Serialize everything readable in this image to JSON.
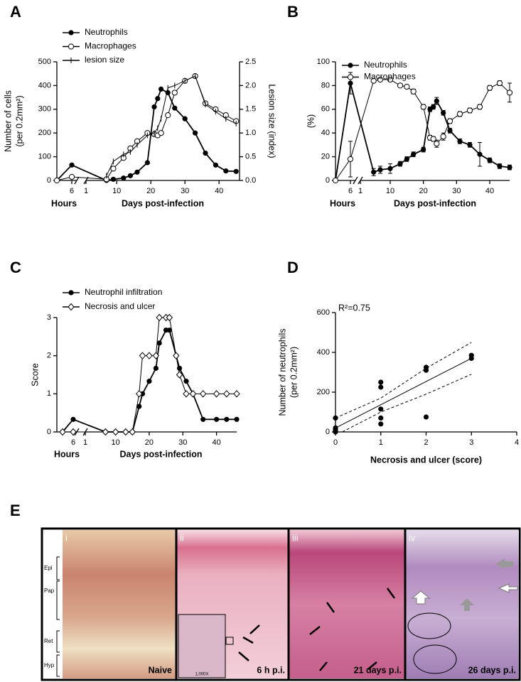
{
  "chart_data": [
    {
      "panel": "A",
      "type": "line",
      "ylabel": [
        "Number of cells",
        "(per 0.2mm²)"
      ],
      "y2label": "Lesion size (index)",
      "hours_label": "Hours",
      "xlabel": "Days post-infection",
      "hours_x": [
        0,
        6
      ],
      "hours_xlim": [
        0,
        8
      ],
      "hours_xticks": [
        6
      ],
      "x": [
        7,
        9,
        12,
        14,
        16,
        19,
        21,
        22,
        23,
        25,
        27,
        30,
        33,
        36,
        39,
        42,
        45
      ],
      "xlim": [
        1,
        46
      ],
      "xticks": [
        1,
        10,
        20,
        30,
        40
      ],
      "ylim": [
        0,
        500
      ],
      "yticks": [
        0,
        100,
        200,
        300,
        400,
        500
      ],
      "y2lim": [
        0,
        2.5
      ],
      "y2ticks": [
        {
          "value": 0,
          "label": "0.0"
        },
        0.5,
        {
          "value": 1,
          "label": "1.0"
        },
        1.5,
        {
          "value": 2,
          "label": "2.0"
        },
        2.5
      ],
      "series": [
        {
          "name": "Neutrophils",
          "marker": "filled-circle",
          "color": "#000000",
          "hours_values": [
            0,
            65
          ],
          "values": [
            0,
            5,
            10,
            20,
            35,
            75,
            310,
            345,
            385,
            370,
            305,
            260,
            200,
            115,
            65,
            40,
            38
          ]
        },
        {
          "name": "Macrophages",
          "marker": "open-circle",
          "color": "#000000",
          "hours_values": [
            0,
            15
          ],
          "values": [
            5,
            50,
            95,
            135,
            165,
            200,
            195,
            190,
            200,
            275,
            370,
            420,
            440,
            325,
            300,
            275,
            250
          ]
        },
        {
          "name": "lesion size",
          "marker": "tick",
          "color": "#000000",
          "axis": "y2",
          "values": [
            0.1,
            0.4,
            0.55,
            0.6,
            0.75,
            0.95,
            1.0,
            1.1,
            1.3,
            1.95,
            2.0,
            2.1,
            2.2,
            1.6,
            1.45,
            1.3,
            1.2
          ]
        }
      ]
    },
    {
      "panel": "B",
      "type": "line",
      "ylabel": [
        "(%)"
      ],
      "hours_label": "Hours",
      "xlabel": "Days post-infection",
      "hours_x": [
        0,
        6
      ],
      "hours_xlim": [
        0,
        8
      ],
      "hours_xticks": [
        6
      ],
      "x": [
        5,
        7,
        10,
        13,
        15,
        17,
        20,
        22,
        23,
        24,
        26,
        28,
        31,
        34,
        37,
        40,
        43,
        46
      ],
      "xlim": [
        1,
        46
      ],
      "xticks": [
        1,
        10,
        20,
        30,
        40
      ],
      "ylim": [
        0,
        100
      ],
      "yticks": [
        0,
        20,
        40,
        60,
        80,
        100
      ],
      "series": [
        {
          "name": "Neutrophils",
          "marker": "filled-circle",
          "color": "#000000",
          "hours_values": [
            0,
            82
          ],
          "hours_errors": [
            null,
            9
          ],
          "values": [
            7,
            9,
            10,
            14,
            18,
            22,
            26,
            60,
            62,
            67,
            57,
            42,
            33,
            30,
            22,
            17,
            12,
            11
          ],
          "errors": [
            3,
            3,
            4,
            2,
            2,
            2,
            2,
            2,
            2,
            3,
            2,
            2,
            2,
            2,
            10,
            2,
            2,
            2
          ]
        },
        {
          "name": "Macrophages",
          "marker": "open-circle",
          "color": "#000000",
          "hours_values": [
            0,
            18
          ],
          "hours_errors": [
            null,
            15
          ],
          "values": [
            84,
            85,
            85,
            80,
            79,
            75,
            62,
            36,
            35,
            31,
            37,
            50,
            56,
            59,
            62,
            78,
            82,
            74
          ],
          "errors": [
            1,
            1,
            1,
            1,
            1,
            2,
            2,
            2,
            2,
            3,
            3,
            2,
            2,
            2,
            2,
            2,
            2,
            8
          ]
        }
      ]
    },
    {
      "panel": "C",
      "type": "line",
      "ylabel": [
        "Score"
      ],
      "hours_label": "Hours",
      "xlabel": "Days post-infection",
      "hours_x": [
        0,
        6
      ],
      "hours_xlim": [
        0,
        8
      ],
      "hours_xticks": [
        6
      ],
      "x": [
        7,
        10,
        13,
        15,
        17,
        18,
        20,
        22,
        23,
        25,
        26,
        28,
        29,
        31,
        33,
        36,
        40,
        43,
        46
      ],
      "xlim": [
        1,
        46
      ],
      "xticks": [
        1,
        10,
        20,
        30,
        40
      ],
      "ylim": [
        0,
        3
      ],
      "yticks": [
        0,
        1,
        2,
        3
      ],
      "series": [
        {
          "name": "Neutrophil infiltration",
          "marker": "filled-circle",
          "color": "#000000",
          "hours_values": [
            0,
            0.33
          ],
          "values": [
            0,
            0,
            0,
            0,
            0.67,
            1,
            1.33,
            1.67,
            2.33,
            2.67,
            2.67,
            2,
            1.67,
            1.33,
            1,
            0.33,
            0.33,
            0.33,
            0.33
          ]
        },
        {
          "name": "Necrosis and ulcer",
          "marker": "open-diamond",
          "color": "#000000",
          "hours_values": [
            0,
            0
          ],
          "values": [
            0,
            0,
            0,
            0,
            1,
            2,
            2,
            2,
            3,
            3,
            3,
            2,
            1.5,
            1,
            1,
            1,
            1,
            1,
            1
          ]
        }
      ]
    },
    {
      "panel": "D",
      "type": "scatter",
      "ylabel": [
        "Number of neutrophils",
        "(per 0.2mm²)"
      ],
      "xlabel": "Necrosis and ulcer (score)",
      "annotation": "R²=0.75",
      "xlim": [
        0,
        4
      ],
      "xticks": [
        0,
        1,
        2,
        3,
        4
      ],
      "ylim": [
        0,
        600
      ],
      "yticks": [
        0,
        200,
        400,
        600
      ],
      "x": [
        0,
        0,
        0,
        0,
        0,
        1,
        1,
        1,
        1,
        1,
        2,
        2,
        2,
        3,
        3
      ],
      "values": [
        70,
        20,
        10,
        5,
        0,
        250,
        225,
        115,
        70,
        40,
        325,
        310,
        75,
        385,
        370
      ],
      "color": "#000000",
      "fit": {
        "x": [
          0,
          3
        ],
        "y": [
          20,
          370
        ]
      },
      "upper_band": {
        "x": [
          0,
          1,
          2,
          3
        ],
        "y": [
          70,
          170,
          320,
          450
        ]
      },
      "lower_band": {
        "x": [
          0.15,
          1,
          2,
          3
        ],
        "y": [
          0,
          100,
          190,
          290
        ]
      }
    }
  ],
  "panel_e": {
    "label": "E",
    "layers": [
      "Epi",
      "Pap",
      "Ret",
      "Hyp"
    ],
    "inset_label": "1,000X",
    "tiles": [
      {
        "numeral": "i",
        "caption": "Naive"
      },
      {
        "numeral": "ii",
        "caption": "6 h p.i."
      },
      {
        "numeral": "iii",
        "caption": "21 days p.i."
      },
      {
        "numeral": "iv",
        "caption": "26 days p.i."
      }
    ]
  }
}
